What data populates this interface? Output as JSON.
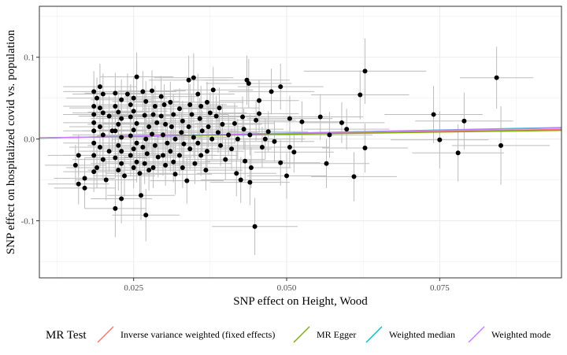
{
  "chart_data": {
    "type": "scatter",
    "xlabel": "SNP effect on Height, Wood",
    "ylabel": "SNP effect on hospitalized covid vs. population",
    "xlim": [
      0.0096,
      0.0949
    ],
    "ylim": [
      -0.1698,
      0.1623
    ],
    "xticks": [
      0.025,
      0.05,
      0.075
    ],
    "xtick_labels": [
      "0.025",
      "0.050",
      "0.075"
    ],
    "yticks": [
      -0.1,
      0.0,
      0.1
    ],
    "ytick_labels": [
      "-0.1",
      "0.0",
      "0.1"
    ],
    "grid": true,
    "legend": {
      "title": "MR Test",
      "position": "bottom",
      "entries": [
        {
          "name": "Inverse variance weighted (fixed effects)",
          "color": "#F8766D"
        },
        {
          "name": "MR Egger",
          "color": "#7CAE00"
        },
        {
          "name": "Weighted median",
          "color": "#00BFC4"
        },
        {
          "name": "Weighted mode",
          "color": "#C77CFF"
        }
      ]
    },
    "lines": [
      {
        "name": "Inverse variance weighted (fixed effects)",
        "color": "#F8766D",
        "intercept": 0.0,
        "slope": 0.125
      },
      {
        "name": "MR Egger",
        "color": "#7CAE00",
        "intercept": 0.0005,
        "slope": 0.106
      },
      {
        "name": "Weighted median",
        "color": "#00BFC4",
        "intercept": -0.0004,
        "slope": 0.152
      },
      {
        "name": "Weighted mode",
        "color": "#C77CFF",
        "intercept": -0.0002,
        "slope": 0.145
      }
    ],
    "points": [
      {
        "x": 0.0185,
        "y": 0.058,
        "xerr": 0.005,
        "yerr": 0.025
      },
      {
        "x": 0.0195,
        "y": 0.064,
        "xerr": 0.006,
        "yerr": 0.028
      },
      {
        "x": 0.019,
        "y": 0.05,
        "xerr": 0.005,
        "yerr": 0.025
      },
      {
        "x": 0.02,
        "y": 0.055,
        "xerr": 0.005,
        "yerr": 0.025
      },
      {
        "x": 0.0185,
        "y": 0.04,
        "xerr": 0.005,
        "yerr": 0.025
      },
      {
        "x": 0.0195,
        "y": 0.038,
        "xerr": 0.005,
        "yerr": 0.025
      },
      {
        "x": 0.0185,
        "y": 0.03,
        "xerr": 0.005,
        "yerr": 0.025
      },
      {
        "x": 0.02,
        "y": 0.032,
        "xerr": 0.005,
        "yerr": 0.025
      },
      {
        "x": 0.0185,
        "y": 0.02,
        "xerr": 0.005,
        "yerr": 0.025
      },
      {
        "x": 0.0195,
        "y": 0.015,
        "xerr": 0.005,
        "yerr": 0.025
      },
      {
        "x": 0.0185,
        "y": 0.01,
        "xerr": 0.005,
        "yerr": 0.025
      },
      {
        "x": 0.02,
        "y": 0.005,
        "xerr": 0.005,
        "yerr": 0.025
      },
      {
        "x": 0.0185,
        "y": -0.005,
        "xerr": 0.005,
        "yerr": 0.025
      },
      {
        "x": 0.0195,
        "y": -0.01,
        "xerr": 0.005,
        "yerr": 0.025
      },
      {
        "x": 0.0185,
        "y": -0.02,
        "xerr": 0.005,
        "yerr": 0.025
      },
      {
        "x": 0.02,
        "y": -0.025,
        "xerr": 0.005,
        "yerr": 0.025
      },
      {
        "x": 0.019,
        "y": -0.035,
        "xerr": 0.005,
        "yerr": 0.025
      },
      {
        "x": 0.0185,
        "y": -0.04,
        "xerr": 0.005,
        "yerr": 0.025
      },
      {
        "x": 0.016,
        "y": -0.055,
        "xerr": 0.005,
        "yerr": 0.025
      },
      {
        "x": 0.017,
        "y": -0.048,
        "xerr": 0.005,
        "yerr": 0.025
      },
      {
        "x": 0.017,
        "y": -0.06,
        "xerr": 0.005,
        "yerr": 0.025
      },
      {
        "x": 0.0155,
        "y": -0.032,
        "xerr": 0.005,
        "yerr": 0.025
      },
      {
        "x": 0.016,
        "y": -0.02,
        "xerr": 0.005,
        "yerr": 0.025
      },
      {
        "x": 0.021,
        "y": 0.028,
        "xerr": 0.005,
        "yerr": 0.025
      },
      {
        "x": 0.0215,
        "y": 0.01,
        "xerr": 0.005,
        "yerr": 0.025
      },
      {
        "x": 0.021,
        "y": -0.015,
        "xerr": 0.005,
        "yerr": 0.025
      },
      {
        "x": 0.0205,
        "y": -0.05,
        "xerr": 0.005,
        "yerr": 0.025
      },
      {
        "x": 0.022,
        "y": 0.056,
        "xerr": 0.005,
        "yerr": 0.025
      },
      {
        "x": 0.023,
        "y": 0.048,
        "xerr": 0.005,
        "yerr": 0.025
      },
      {
        "x": 0.022,
        "y": 0.04,
        "xerr": 0.005,
        "yerr": 0.025
      },
      {
        "x": 0.0225,
        "y": 0.033,
        "xerr": 0.005,
        "yerr": 0.025
      },
      {
        "x": 0.023,
        "y": 0.025,
        "xerr": 0.005,
        "yerr": 0.025
      },
      {
        "x": 0.0225,
        "y": 0.018,
        "xerr": 0.005,
        "yerr": 0.025
      },
      {
        "x": 0.022,
        "y": 0.01,
        "xerr": 0.005,
        "yerr": 0.025
      },
      {
        "x": 0.023,
        "y": 0.002,
        "xerr": 0.005,
        "yerr": 0.025
      },
      {
        "x": 0.0225,
        "y": -0.008,
        "xerr": 0.005,
        "yerr": 0.025
      },
      {
        "x": 0.023,
        "y": -0.015,
        "xerr": 0.005,
        "yerr": 0.025
      },
      {
        "x": 0.022,
        "y": -0.023,
        "xerr": 0.005,
        "yerr": 0.025
      },
      {
        "x": 0.023,
        "y": -0.03,
        "xerr": 0.005,
        "yerr": 0.025
      },
      {
        "x": 0.0225,
        "y": -0.038,
        "xerr": 0.005,
        "yerr": 0.025
      },
      {
        "x": 0.0235,
        "y": -0.045,
        "xerr": 0.005,
        "yerr": 0.025
      },
      {
        "x": 0.022,
        "y": -0.085,
        "xerr": 0.005,
        "yerr": 0.035
      },
      {
        "x": 0.023,
        "y": -0.073,
        "xerr": 0.005,
        "yerr": 0.03
      },
      {
        "x": 0.024,
        "y": 0.055,
        "xerr": 0.0055,
        "yerr": 0.025
      },
      {
        "x": 0.025,
        "y": 0.05,
        "xerr": 0.0055,
        "yerr": 0.025
      },
      {
        "x": 0.0255,
        "y": 0.076,
        "xerr": 0.006,
        "yerr": 0.03
      },
      {
        "x": 0.0245,
        "y": 0.042,
        "xerr": 0.0055,
        "yerr": 0.025
      },
      {
        "x": 0.025,
        "y": 0.034,
        "xerr": 0.0055,
        "yerr": 0.025
      },
      {
        "x": 0.0245,
        "y": 0.027,
        "xerr": 0.0055,
        "yerr": 0.025
      },
      {
        "x": 0.0255,
        "y": 0.019,
        "xerr": 0.0055,
        "yerr": 0.025
      },
      {
        "x": 0.025,
        "y": 0.011,
        "xerr": 0.0055,
        "yerr": 0.025
      },
      {
        "x": 0.0245,
        "y": 0.004,
        "xerr": 0.0055,
        "yerr": 0.025
      },
      {
        "x": 0.0255,
        "y": -0.005,
        "xerr": 0.0055,
        "yerr": 0.025
      },
      {
        "x": 0.025,
        "y": -0.012,
        "xerr": 0.0055,
        "yerr": 0.025
      },
      {
        "x": 0.0245,
        "y": -0.02,
        "xerr": 0.0055,
        "yerr": 0.025
      },
      {
        "x": 0.0255,
        "y": -0.028,
        "xerr": 0.0055,
        "yerr": 0.025
      },
      {
        "x": 0.025,
        "y": -0.035,
        "xerr": 0.0055,
        "yerr": 0.025
      },
      {
        "x": 0.026,
        "y": -0.042,
        "xerr": 0.0055,
        "yerr": 0.025
      },
      {
        "x": 0.0262,
        "y": -0.069,
        "xerr": 0.0055,
        "yerr": 0.03
      },
      {
        "x": 0.0265,
        "y": 0.058,
        "xerr": 0.0055,
        "yerr": 0.025
      },
      {
        "x": 0.027,
        "y": 0.046,
        "xerr": 0.0055,
        "yerr": 0.025
      },
      {
        "x": 0.0268,
        "y": 0.029,
        "xerr": 0.0055,
        "yerr": 0.025
      },
      {
        "x": 0.0275,
        "y": 0.015,
        "xerr": 0.0055,
        "yerr": 0.025
      },
      {
        "x": 0.027,
        "y": 0.0,
        "xerr": 0.0055,
        "yerr": 0.025
      },
      {
        "x": 0.0265,
        "y": -0.01,
        "xerr": 0.0055,
        "yerr": 0.025
      },
      {
        "x": 0.0272,
        "y": -0.018,
        "xerr": 0.0055,
        "yerr": 0.025
      },
      {
        "x": 0.0268,
        "y": -0.03,
        "xerr": 0.0055,
        "yerr": 0.025
      },
      {
        "x": 0.0275,
        "y": -0.038,
        "xerr": 0.0055,
        "yerr": 0.025
      },
      {
        "x": 0.028,
        "y": 0.059,
        "xerr": 0.0055,
        "yerr": 0.025
      },
      {
        "x": 0.0285,
        "y": 0.04,
        "xerr": 0.0055,
        "yerr": 0.025
      },
      {
        "x": 0.0282,
        "y": 0.03,
        "xerr": 0.0055,
        "yerr": 0.025
      },
      {
        "x": 0.0288,
        "y": 0.02,
        "xerr": 0.0055,
        "yerr": 0.025
      },
      {
        "x": 0.028,
        "y": 0.006,
        "xerr": 0.0055,
        "yerr": 0.025
      },
      {
        "x": 0.0285,
        "y": -0.008,
        "xerr": 0.0055,
        "yerr": 0.025
      },
      {
        "x": 0.029,
        "y": -0.022,
        "xerr": 0.0055,
        "yerr": 0.025
      },
      {
        "x": 0.0282,
        "y": -0.035,
        "xerr": 0.0055,
        "yerr": 0.025
      },
      {
        "x": 0.027,
        "y": -0.093,
        "xerr": 0.0055,
        "yerr": 0.032
      },
      {
        "x": 0.0295,
        "y": 0.052,
        "xerr": 0.006,
        "yerr": 0.025
      },
      {
        "x": 0.03,
        "y": 0.042,
        "xerr": 0.006,
        "yerr": 0.025
      },
      {
        "x": 0.0295,
        "y": 0.028,
        "xerr": 0.006,
        "yerr": 0.025
      },
      {
        "x": 0.0302,
        "y": 0.018,
        "xerr": 0.006,
        "yerr": 0.025
      },
      {
        "x": 0.0298,
        "y": 0.005,
        "xerr": 0.006,
        "yerr": 0.025
      },
      {
        "x": 0.0305,
        "y": -0.005,
        "xerr": 0.006,
        "yerr": 0.025
      },
      {
        "x": 0.0298,
        "y": -0.02,
        "xerr": 0.006,
        "yerr": 0.025
      },
      {
        "x": 0.0302,
        "y": -0.032,
        "xerr": 0.006,
        "yerr": 0.025
      },
      {
        "x": 0.031,
        "y": 0.045,
        "xerr": 0.006,
        "yerr": 0.025
      },
      {
        "x": 0.0315,
        "y": 0.03,
        "xerr": 0.006,
        "yerr": 0.025
      },
      {
        "x": 0.0312,
        "y": 0.015,
        "xerr": 0.006,
        "yerr": 0.025
      },
      {
        "x": 0.0318,
        "y": 0.0,
        "xerr": 0.006,
        "yerr": 0.025
      },
      {
        "x": 0.031,
        "y": -0.015,
        "xerr": 0.006,
        "yerr": 0.025
      },
      {
        "x": 0.0315,
        "y": -0.028,
        "xerr": 0.006,
        "yerr": 0.025
      },
      {
        "x": 0.0318,
        "y": -0.043,
        "xerr": 0.006,
        "yerr": 0.025
      },
      {
        "x": 0.0325,
        "y": 0.037,
        "xerr": 0.006,
        "yerr": 0.025
      },
      {
        "x": 0.033,
        "y": 0.022,
        "xerr": 0.006,
        "yerr": 0.025
      },
      {
        "x": 0.0328,
        "y": 0.008,
        "xerr": 0.006,
        "yerr": 0.025
      },
      {
        "x": 0.0332,
        "y": -0.006,
        "xerr": 0.006,
        "yerr": 0.025
      },
      {
        "x": 0.0325,
        "y": -0.02,
        "xerr": 0.006,
        "yerr": 0.025
      },
      {
        "x": 0.033,
        "y": -0.035,
        "xerr": 0.006,
        "yerr": 0.025
      },
      {
        "x": 0.0337,
        "y": -0.051,
        "xerr": 0.006,
        "yerr": 0.028
      },
      {
        "x": 0.034,
        "y": 0.072,
        "xerr": 0.0065,
        "yerr": 0.03
      },
      {
        "x": 0.0348,
        "y": 0.075,
        "xerr": 0.0065,
        "yerr": 0.03
      },
      {
        "x": 0.0342,
        "y": 0.042,
        "xerr": 0.006,
        "yerr": 0.025
      },
      {
        "x": 0.0345,
        "y": 0.03,
        "xerr": 0.006,
        "yerr": 0.025
      },
      {
        "x": 0.034,
        "y": 0.015,
        "xerr": 0.006,
        "yerr": 0.025
      },
      {
        "x": 0.0348,
        "y": 0.002,
        "xerr": 0.006,
        "yerr": 0.025
      },
      {
        "x": 0.0342,
        "y": -0.012,
        "xerr": 0.006,
        "yerr": 0.025
      },
      {
        "x": 0.035,
        "y": -0.03,
        "xerr": 0.006,
        "yerr": 0.025
      },
      {
        "x": 0.0355,
        "y": 0.055,
        "xerr": 0.006,
        "yerr": 0.025
      },
      {
        "x": 0.036,
        "y": 0.04,
        "xerr": 0.006,
        "yerr": 0.025
      },
      {
        "x": 0.0358,
        "y": 0.025,
        "xerr": 0.006,
        "yerr": 0.025
      },
      {
        "x": 0.0362,
        "y": 0.01,
        "xerr": 0.006,
        "yerr": 0.025
      },
      {
        "x": 0.0355,
        "y": -0.005,
        "xerr": 0.006,
        "yerr": 0.025
      },
      {
        "x": 0.036,
        "y": -0.02,
        "xerr": 0.006,
        "yerr": 0.025
      },
      {
        "x": 0.0368,
        "y": -0.038,
        "xerr": 0.006,
        "yerr": 0.025
      },
      {
        "x": 0.037,
        "y": 0.045,
        "xerr": 0.006,
        "yerr": 0.025
      },
      {
        "x": 0.0375,
        "y": 0.032,
        "xerr": 0.006,
        "yerr": 0.025
      },
      {
        "x": 0.0372,
        "y": 0.015,
        "xerr": 0.006,
        "yerr": 0.025
      },
      {
        "x": 0.0378,
        "y": 0.0,
        "xerr": 0.006,
        "yerr": 0.025
      },
      {
        "x": 0.037,
        "y": -0.015,
        "xerr": 0.006,
        "yerr": 0.025
      },
      {
        "x": 0.038,
        "y": 0.06,
        "xerr": 0.0065,
        "yerr": 0.028
      },
      {
        "x": 0.0385,
        "y": 0.028,
        "xerr": 0.0065,
        "yerr": 0.025
      },
      {
        "x": 0.0388,
        "y": 0.008,
        "xerr": 0.0065,
        "yerr": 0.025
      },
      {
        "x": 0.039,
        "y": 0.038,
        "xerr": 0.0065,
        "yerr": 0.025
      },
      {
        "x": 0.0395,
        "y": 0.018,
        "xerr": 0.0065,
        "yerr": 0.025
      },
      {
        "x": 0.0392,
        "y": -0.008,
        "xerr": 0.0065,
        "yerr": 0.025
      },
      {
        "x": 0.04,
        "y": -0.025,
        "xerr": 0.0065,
        "yerr": 0.025
      },
      {
        "x": 0.0405,
        "y": 0.005,
        "xerr": 0.0065,
        "yerr": 0.025
      },
      {
        "x": 0.041,
        "y": -0.012,
        "xerr": 0.0065,
        "yerr": 0.025
      },
      {
        "x": 0.0415,
        "y": 0.019,
        "xerr": 0.0065,
        "yerr": 0.025
      },
      {
        "x": 0.0418,
        "y": -0.042,
        "xerr": 0.0065,
        "yerr": 0.028
      },
      {
        "x": 0.042,
        "y": 0.0,
        "xerr": 0.0065,
        "yerr": 0.025
      },
      {
        "x": 0.0428,
        "y": 0.027,
        "xerr": 0.0065,
        "yerr": 0.025
      },
      {
        "x": 0.043,
        "y": 0.012,
        "xerr": 0.0065,
        "yerr": 0.025
      },
      {
        "x": 0.0425,
        "y": -0.05,
        "xerr": 0.0065,
        "yerr": 0.028
      },
      {
        "x": 0.0432,
        "y": -0.027,
        "xerr": 0.0065,
        "yerr": 0.025
      },
      {
        "x": 0.0435,
        "y": 0.072,
        "xerr": 0.007,
        "yerr": 0.03
      },
      {
        "x": 0.0438,
        "y": 0.068,
        "xerr": 0.007,
        "yerr": 0.03
      },
      {
        "x": 0.044,
        "y": 0.005,
        "xerr": 0.0065,
        "yerr": 0.025
      },
      {
        "x": 0.0442,
        "y": -0.035,
        "xerr": 0.0065,
        "yerr": 0.025
      },
      {
        "x": 0.044,
        "y": -0.053,
        "xerr": 0.0065,
        "yerr": 0.028
      },
      {
        "x": 0.045,
        "y": 0.023,
        "xerr": 0.0065,
        "yerr": 0.025
      },
      {
        "x": 0.0455,
        "y": 0.047,
        "xerr": 0.0065,
        "yerr": 0.025
      },
      {
        "x": 0.0455,
        "y": 0.031,
        "xerr": 0.0065,
        "yerr": 0.025
      },
      {
        "x": 0.0448,
        "y": -0.107,
        "xerr": 0.007,
        "yerr": 0.035
      },
      {
        "x": 0.046,
        "y": -0.01,
        "xerr": 0.0065,
        "yerr": 0.025
      },
      {
        "x": 0.0465,
        "y": 0.0,
        "xerr": 0.0065,
        "yerr": 0.025
      },
      {
        "x": 0.047,
        "y": 0.009,
        "xerr": 0.0065,
        "yerr": 0.025
      },
      {
        "x": 0.0475,
        "y": 0.058,
        "xerr": 0.007,
        "yerr": 0.028
      },
      {
        "x": 0.048,
        "y": -0.003,
        "xerr": 0.0065,
        "yerr": 0.025
      },
      {
        "x": 0.049,
        "y": 0.064,
        "xerr": 0.007,
        "yerr": 0.028
      },
      {
        "x": 0.049,
        "y": -0.029,
        "xerr": 0.0065,
        "yerr": 0.028
      },
      {
        "x": 0.05,
        "y": -0.045,
        "xerr": 0.0065,
        "yerr": 0.028
      },
      {
        "x": 0.0505,
        "y": 0.025,
        "xerr": 0.007,
        "yerr": 0.028
      },
      {
        "x": 0.0505,
        "y": -0.01,
        "xerr": 0.0065,
        "yerr": 0.025
      },
      {
        "x": 0.0512,
        "y": -0.016,
        "xerr": 0.0065,
        "yerr": 0.025
      },
      {
        "x": 0.0525,
        "y": 0.021,
        "xerr": 0.007,
        "yerr": 0.025
      },
      {
        "x": 0.0555,
        "y": 0.027,
        "xerr": 0.007,
        "yerr": 0.028
      },
      {
        "x": 0.057,
        "y": 0.005,
        "xerr": 0.007,
        "yerr": 0.028
      },
      {
        "x": 0.0565,
        "y": -0.03,
        "xerr": 0.007,
        "yerr": 0.03
      },
      {
        "x": 0.059,
        "y": 0.02,
        "xerr": 0.007,
        "yerr": 0.025
      },
      {
        "x": 0.0598,
        "y": 0.012,
        "xerr": 0.007,
        "yerr": 0.025
      },
      {
        "x": 0.061,
        "y": -0.046,
        "xerr": 0.007,
        "yerr": 0.03
      },
      {
        "x": 0.062,
        "y": 0.054,
        "xerr": 0.008,
        "yerr": 0.03
      },
      {
        "x": 0.0628,
        "y": 0.083,
        "xerr": 0.01,
        "yerr": 0.04
      },
      {
        "x": 0.0628,
        "y": -0.011,
        "xerr": 0.007,
        "yerr": 0.03
      },
      {
        "x": 0.074,
        "y": 0.03,
        "xerr": 0.008,
        "yerr": 0.035
      },
      {
        "x": 0.075,
        "y": -0.001,
        "xerr": 0.008,
        "yerr": 0.035
      },
      {
        "x": 0.078,
        "y": -0.017,
        "xerr": 0.0075,
        "yerr": 0.035
      },
      {
        "x": 0.079,
        "y": 0.022,
        "xerr": 0.008,
        "yerr": 0.035
      },
      {
        "x": 0.0843,
        "y": 0.075,
        "xerr": 0.006,
        "yerr": 0.038
      },
      {
        "x": 0.085,
        "y": -0.008,
        "xerr": 0.008,
        "yerr": 0.048
      }
    ]
  }
}
